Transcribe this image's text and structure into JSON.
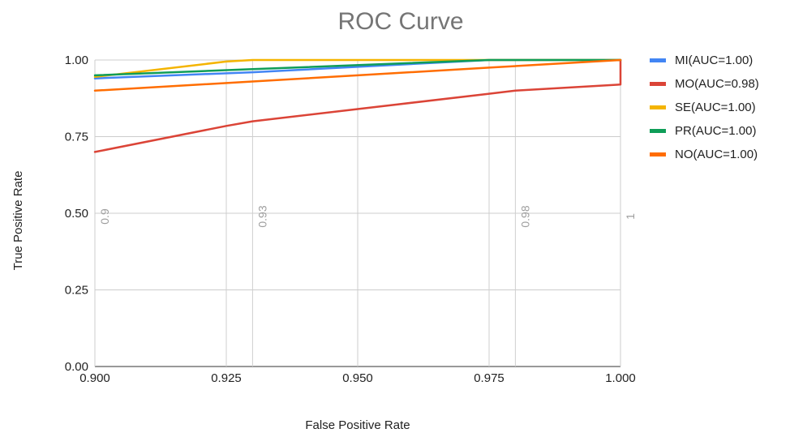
{
  "chart_data": {
    "type": "line",
    "title": "ROC Curve",
    "xlabel": "False Positive Rate",
    "ylabel": "True Positive Rate",
    "xlim": [
      0.9,
      1.0
    ],
    "ylim": [
      0.0,
      1.0
    ],
    "x_ticks": [
      "0.900",
      "0.925",
      "0.950",
      "0.975",
      "1.000"
    ],
    "y_ticks": [
      "0.00",
      "0.25",
      "0.50",
      "0.75",
      "1.00"
    ],
    "grid": true,
    "legend_position": "right",
    "series": [
      {
        "name": "MI(AUC=1.00)",
        "color": "#4285f4",
        "points": [
          [
            0.9,
            0.94
          ],
          [
            0.93,
            0.96
          ],
          [
            0.975,
            1.0
          ],
          [
            1.0,
            1.0
          ]
        ]
      },
      {
        "name": "MO(AUC=0.98)",
        "color": "#db4437",
        "points": [
          [
            0.9,
            0.7
          ],
          [
            0.925,
            0.785
          ],
          [
            0.93,
            0.8
          ],
          [
            0.95,
            0.84
          ],
          [
            0.975,
            0.89
          ],
          [
            0.98,
            0.9
          ],
          [
            1.0,
            0.92
          ],
          [
            1.0,
            1.0
          ]
        ]
      },
      {
        "name": "SE(AUC=1.00)",
        "color": "#f4b400",
        "points": [
          [
            0.9,
            0.945
          ],
          [
            0.925,
            0.995
          ],
          [
            0.93,
            1.0
          ],
          [
            1.0,
            1.0
          ]
        ]
      },
      {
        "name": "PR(AUC=1.00)",
        "color": "#0f9d58",
        "points": [
          [
            0.9,
            0.95
          ],
          [
            0.93,
            0.97
          ],
          [
            0.975,
            1.0
          ],
          [
            1.0,
            1.0
          ]
        ]
      },
      {
        "name": "NO(AUC=1.00)",
        "color": "#ff6d00",
        "points": [
          [
            0.9,
            0.9
          ],
          [
            0.93,
            0.93
          ],
          [
            0.95,
            0.95
          ],
          [
            0.975,
            0.975
          ],
          [
            1.0,
            1.0
          ]
        ]
      }
    ],
    "vertical_lines": [
      {
        "x": 0.925
      },
      {
        "x": 0.93
      },
      {
        "x": 0.975
      },
      {
        "x": 0.98
      }
    ],
    "annotations": [
      {
        "text": "0.9",
        "x": 0.9
      },
      {
        "text": "0.93",
        "x": 0.93
      },
      {
        "text": "0.98",
        "x": 0.98
      },
      {
        "text": "1",
        "x": 1.0
      }
    ]
  }
}
